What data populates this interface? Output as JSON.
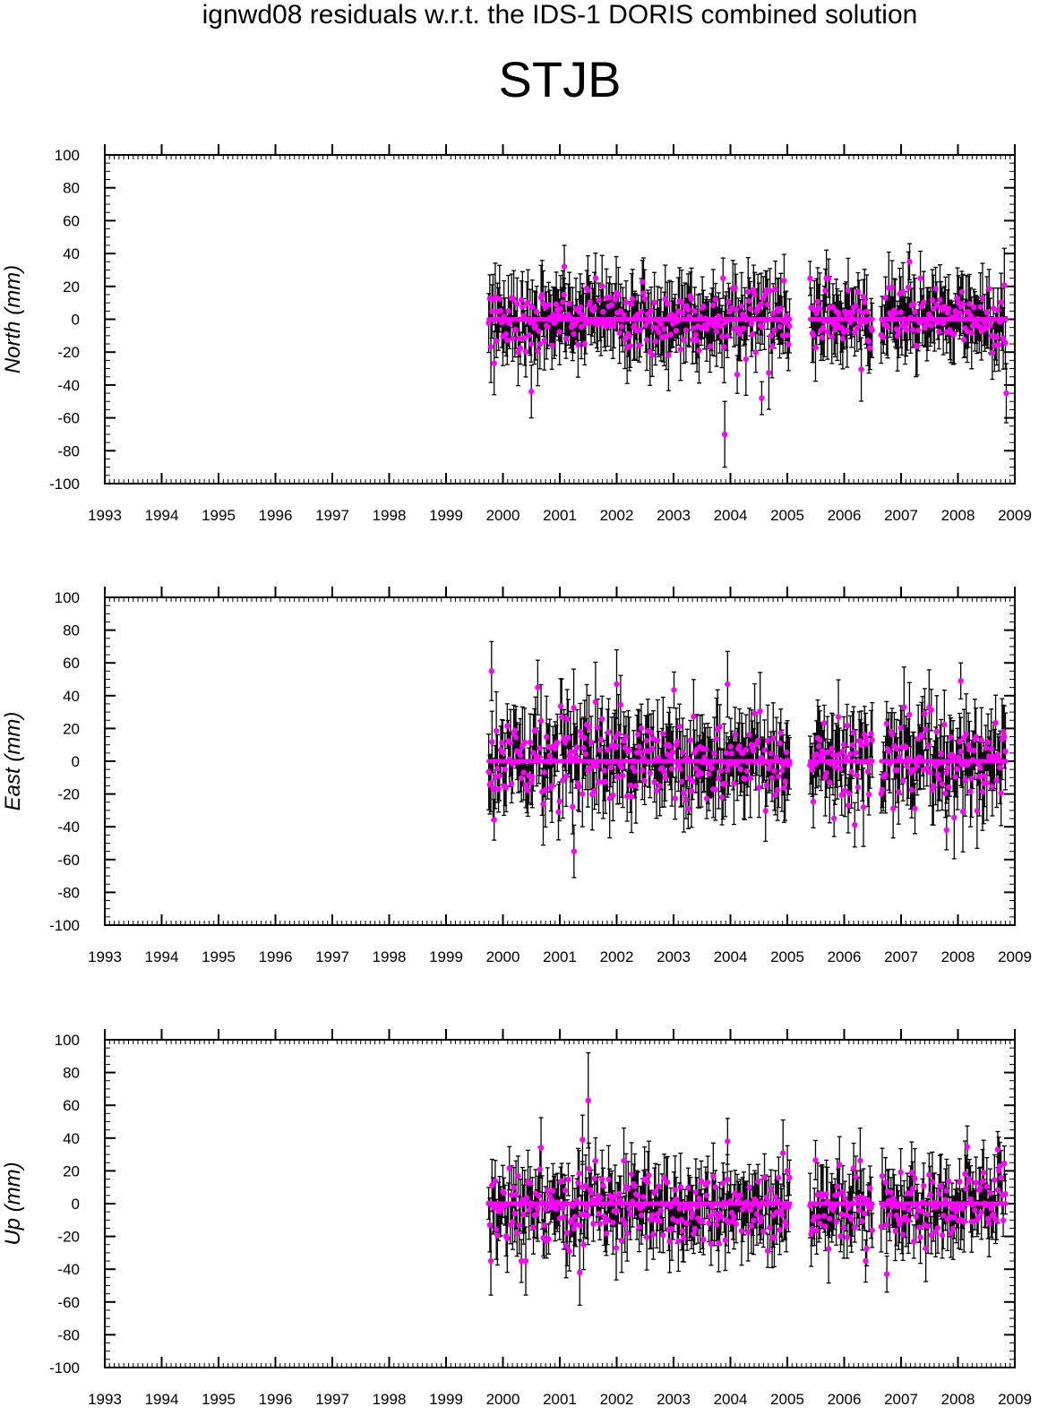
{
  "figure": {
    "suptitle": "ignwd08 residuals w.r.t. the IDS-1 DORIS combined solution",
    "station": "STJB"
  },
  "colors": {
    "point": "#ff00ff",
    "error_bar": "#000000",
    "axes": "#000000"
  },
  "chart_data": [
    {
      "type": "scatter",
      "title": "",
      "ylabel": "North (mm)",
      "xlabel": "",
      "xlim": [
        1993,
        2009
      ],
      "ylim": [
        -100,
        100
      ],
      "xticks": [
        1993,
        1994,
        1995,
        1996,
        1997,
        1998,
        1999,
        2000,
        2001,
        2002,
        2003,
        2004,
        2005,
        2006,
        2007,
        2008,
        2009
      ],
      "yticks": [
        100,
        80,
        60,
        40,
        20,
        0,
        -20,
        -40,
        -60,
        -80,
        -100
      ],
      "grid": false,
      "error_bars": true,
      "series": [
        {
          "data_segments": [
            [
              1999.75,
              2005.05
            ],
            [
              2005.4,
              2006.5
            ],
            [
              2006.65,
              2008.85
            ]
          ],
          "typical_value": 0,
          "scatter_sd_mm": 10,
          "typical_error_bar_mm": 16,
          "approx_max": 35,
          "approx_min": -70,
          "notable_points": [
            {
              "x": 2001.08,
              "y": 32,
              "err": 13
            },
            {
              "x": 2003.9,
              "y": -70,
              "err": 20
            },
            {
              "x": 2007.15,
              "y": 35,
              "err": 11
            },
            {
              "x": 2000.5,
              "y": -44,
              "err": 16
            },
            {
              "x": 2004.55,
              "y": -48,
              "err": 10
            },
            {
              "x": 2008.85,
              "y": -45,
              "err": 18
            }
          ]
        }
      ]
    },
    {
      "type": "scatter",
      "title": "",
      "ylabel": "East (mm)",
      "xlabel": "",
      "xlim": [
        1993,
        2009
      ],
      "ylim": [
        -100,
        100
      ],
      "xticks": [
        1993,
        1994,
        1995,
        1996,
        1997,
        1998,
        1999,
        2000,
        2001,
        2002,
        2003,
        2004,
        2005,
        2006,
        2007,
        2008,
        2009
      ],
      "yticks": [
        100,
        80,
        60,
        40,
        20,
        0,
        -20,
        -40,
        -60,
        -80,
        -100
      ],
      "grid": false,
      "error_bars": true,
      "series": [
        {
          "data_segments": [
            [
              1999.75,
              2005.05
            ],
            [
              2005.4,
              2006.5
            ],
            [
              2006.65,
              2008.85
            ]
          ],
          "typical_value": 0,
          "scatter_sd_mm": 14,
          "typical_error_bar_mm": 18,
          "approx_max": 55,
          "approx_min": -55,
          "notable_points": [
            {
              "x": 1999.8,
              "y": 55,
              "err": 18
            },
            {
              "x": 2001.25,
              "y": -55,
              "err": 16
            },
            {
              "x": 2002.0,
              "y": 47,
              "err": 21
            },
            {
              "x": 2003.95,
              "y": 47,
              "err": 20
            },
            {
              "x": 2007.8,
              "y": -42,
              "err": 12
            },
            {
              "x": 2008.05,
              "y": 49,
              "err": 11
            }
          ]
        }
      ]
    },
    {
      "type": "scatter",
      "title": "",
      "ylabel": "Up (mm)",
      "xlabel": "",
      "xlim": [
        1993,
        2009
      ],
      "ylim": [
        -100,
        100
      ],
      "xticks": [
        1993,
        1994,
        1995,
        1996,
        1997,
        1998,
        1999,
        2000,
        2001,
        2002,
        2003,
        2004,
        2005,
        2006,
        2007,
        2008,
        2009
      ],
      "yticks": [
        100,
        80,
        60,
        40,
        20,
        0,
        -20,
        -40,
        -60,
        -80,
        -100
      ],
      "grid": false,
      "error_bars": true,
      "series": [
        {
          "data_segments": [
            [
              1999.75,
              2005.05
            ],
            [
              2005.4,
              2006.5
            ],
            [
              2006.65,
              2008.85
            ]
          ],
          "typical_value": -3,
          "scatter_sd_mm": 12,
          "typical_error_bar_mm": 15,
          "approx_max": 63,
          "approx_min": -45,
          "notable_points": [
            {
              "x": 2001.5,
              "y": 63,
              "err": 29
            },
            {
              "x": 2001.4,
              "y": 39,
              "err": 15
            },
            {
              "x": 2001.35,
              "y": -42,
              "err": 20
            },
            {
              "x": 2003.95,
              "y": 38,
              "err": 14
            },
            {
              "x": 2008.7,
              "y": 33,
              "err": 11
            },
            {
              "x": 2006.75,
              "y": -43,
              "err": 11
            }
          ]
        }
      ]
    }
  ]
}
